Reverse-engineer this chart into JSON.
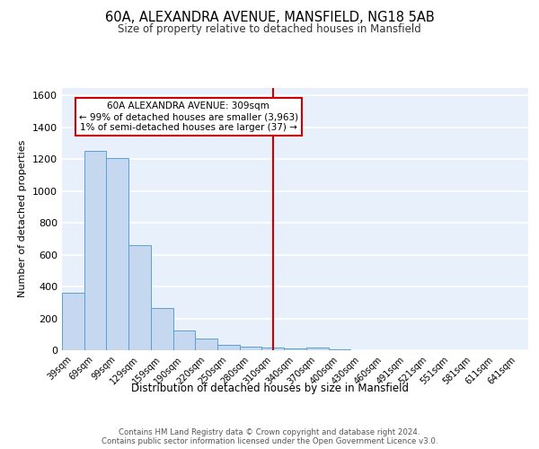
{
  "title": "60A, ALEXANDRA AVENUE, MANSFIELD, NG18 5AB",
  "subtitle": "Size of property relative to detached houses in Mansfield",
  "xlabel": "Distribution of detached houses by size in Mansfield",
  "ylabel": "Number of detached properties",
  "categories": [
    "39sqm",
    "69sqm",
    "99sqm",
    "129sqm",
    "159sqm",
    "190sqm",
    "220sqm",
    "250sqm",
    "280sqm",
    "310sqm",
    "340sqm",
    "370sqm",
    "400sqm",
    "430sqm",
    "460sqm",
    "491sqm",
    "521sqm",
    "551sqm",
    "581sqm",
    "611sqm",
    "641sqm"
  ],
  "values": [
    360,
    1250,
    1210,
    660,
    265,
    125,
    75,
    35,
    25,
    15,
    10,
    15,
    5,
    2,
    0,
    0,
    0,
    0,
    0,
    0,
    0
  ],
  "bar_color": "#c5d8f0",
  "bar_edge_color": "#5a9fd4",
  "vline_index": 9,
  "vline_color": "#cc0000",
  "annotation_text": "60A ALEXANDRA AVENUE: 309sqm\n← 99% of detached houses are smaller (3,963)\n1% of semi-detached houses are larger (37) →",
  "annotation_box_color": "#ffffff",
  "annotation_box_edge": "#cc0000",
  "ylim": [
    0,
    1650
  ],
  "yticks": [
    0,
    200,
    400,
    600,
    800,
    1000,
    1200,
    1400,
    1600
  ],
  "footer_text": "Contains HM Land Registry data © Crown copyright and database right 2024.\nContains public sector information licensed under the Open Government Licence v3.0.",
  "bg_color": "#e8f0fb",
  "grid_color": "#ffffff"
}
